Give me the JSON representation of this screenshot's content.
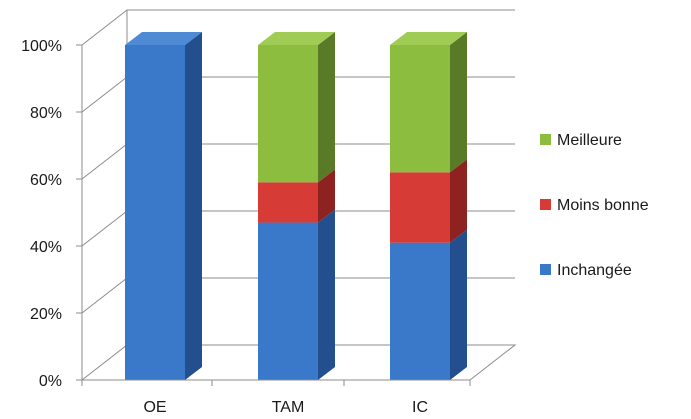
{
  "chart_data": {
    "type": "bar",
    "stacked": true,
    "percent": true,
    "three_d": true,
    "categories": [
      "OE",
      "TAM",
      "IC"
    ],
    "series": [
      {
        "name": "Inchangée",
        "values": [
          100,
          47,
          41
        ],
        "color": "#3a78c9",
        "side_color": "#234f8e",
        "top_color": "#4f8ad4"
      },
      {
        "name": "Moins bonne",
        "values": [
          0,
          12,
          21
        ],
        "color": "#d63b36",
        "side_color": "#8e2220",
        "top_color": "#e0514b"
      },
      {
        "name": "Meilleure",
        "values": [
          0,
          41,
          38
        ],
        "color": "#8cbd3f",
        "side_color": "#597a27",
        "top_color": "#a0cc56"
      }
    ],
    "y_ticks": [
      "0%",
      "20%",
      "40%",
      "60%",
      "80%",
      "100%"
    ],
    "ylim": [
      0,
      100
    ],
    "grid": true,
    "legend_position": "right",
    "legend_order": [
      "Meilleure",
      "Moins bonne",
      "Inchangée"
    ]
  }
}
